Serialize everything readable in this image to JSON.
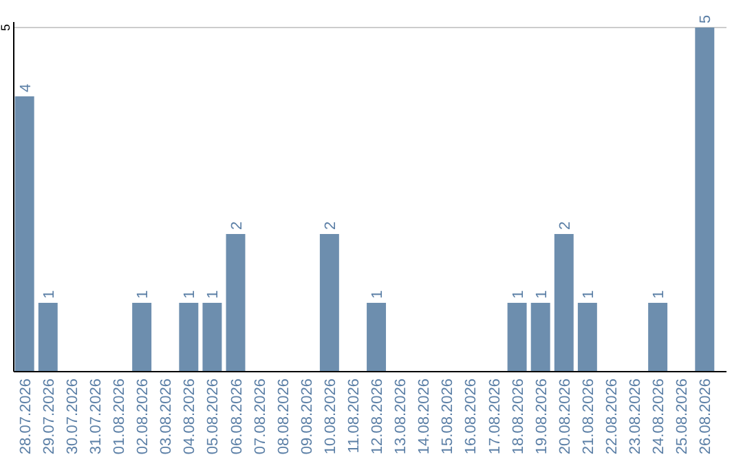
{
  "chart_data": {
    "type": "bar",
    "categories": [
      "28.07.2026",
      "29.07.2026",
      "30.07.2026",
      "31.07.2026",
      "01.08.2026",
      "02.08.2026",
      "03.08.2026",
      "04.08.2026",
      "05.08.2026",
      "06.08.2026",
      "07.08.2026",
      "08.08.2026",
      "09.08.2026",
      "10.08.2026",
      "11.08.2026",
      "12.08.2026",
      "13.08.2026",
      "14.08.2026",
      "15.08.2026",
      "16.08.2026",
      "17.08.2026",
      "18.08.2026",
      "19.08.2026",
      "20.08.2026",
      "21.08.2026",
      "22.08.2026",
      "23.08.2026",
      "24.08.2026",
      "25.08.2026",
      "26.08.2026"
    ],
    "values": [
      4,
      1,
      0,
      0,
      0,
      1,
      0,
      1,
      1,
      2,
      0,
      0,
      0,
      2,
      0,
      1,
      0,
      0,
      0,
      0,
      0,
      1,
      1,
      2,
      1,
      0,
      0,
      1,
      0,
      5
    ],
    "value_labels": [
      "4",
      "1",
      null,
      null,
      null,
      "1",
      null,
      "1",
      "1",
      "2",
      null,
      null,
      null,
      "2",
      null,
      "1",
      null,
      null,
      null,
      null,
      null,
      "1",
      "1",
      "2",
      "1",
      null,
      null,
      "1",
      null,
      "5"
    ],
    "color": "#6d8eae",
    "ylim": [
      0,
      5
    ],
    "yticks": [
      5
    ],
    "ref_lines": [
      {
        "axis": "y",
        "value": 5,
        "color": "#cccccc"
      }
    ]
  }
}
